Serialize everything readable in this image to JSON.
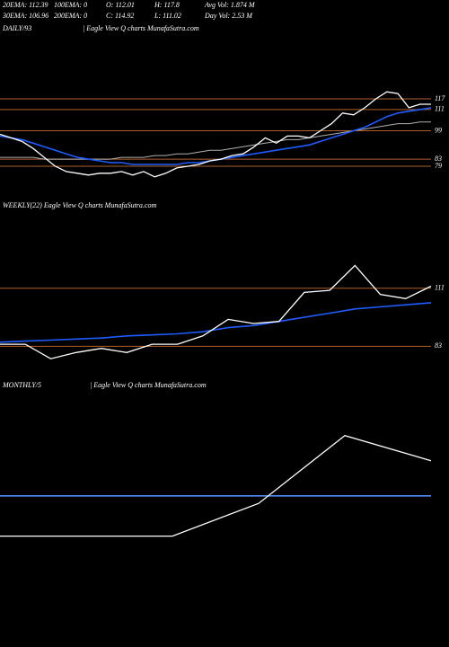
{
  "header": {
    "row1": [
      "20EMA: 112.39",
      "100EMA: 0",
      "O: 112.01",
      "H: 117.8",
      "Avg Vol: 1.874  M"
    ],
    "row2": [
      "30EMA: 106.96",
      "200EMA: 0",
      "C: 114.92",
      "L: 111.02",
      "Day Vol: 2.53  M"
    ]
  },
  "chart_data": [
    {
      "type": "line",
      "title": "DAILY/93",
      "subtitle": "| Eagle  View  Q charts MunafaSutra.com",
      "ylim": [
        46,
        150
      ],
      "yticks": [
        79,
        83,
        99,
        111,
        117
      ],
      "tick_line_color": "#b0602a",
      "series": [
        {
          "color": "#b0b0b0",
          "values": [
            84,
            84,
            84,
            84,
            83,
            83,
            83,
            83,
            83,
            83,
            83,
            84,
            84,
            84,
            85,
            85,
            86,
            86,
            87,
            88,
            88,
            89,
            90,
            91,
            92,
            93,
            94,
            94,
            95,
            96,
            97,
            98,
            99,
            100,
            101,
            102,
            103,
            103,
            104,
            104
          ]
        },
        {
          "color": "#1e5cff",
          "values": [
            96,
            95,
            94,
            92,
            90,
            88,
            86,
            84,
            83,
            82,
            81,
            81,
            80,
            80,
            80,
            80,
            80,
            81,
            81,
            82,
            83,
            84,
            85,
            86,
            87,
            88,
            89,
            90,
            91,
            93,
            95,
            97,
            99,
            101,
            104,
            107,
            109,
            110,
            111,
            112
          ]
        },
        {
          "color": "#ffffff",
          "values": [
            97,
            95,
            93,
            89,
            84,
            79,
            76,
            75,
            74,
            75,
            75,
            76,
            74,
            76,
            73,
            75,
            78,
            79,
            80,
            82,
            83,
            85,
            86,
            90,
            95,
            92,
            96,
            96,
            95,
            99,
            103,
            109,
            108,
            112,
            117,
            121,
            120,
            112,
            114,
            114
          ]
        }
      ]
    },
    {
      "type": "line",
      "title": "WEEKLY(22) Eagle  View  Q charts MunafaSutra.com",
      "ylim": [
        68,
        146
      ],
      "yticks": [
        83,
        111
      ],
      "tick_line_color": "#b0602a",
      "series": [
        {
          "color": "#1e5cff",
          "values": [
            85,
            85.5,
            86,
            86.5,
            87,
            88,
            88.5,
            89,
            90,
            92,
            93,
            95,
            97,
            99,
            101,
            102,
            103,
            104
          ]
        },
        {
          "color": "#ffffff",
          "values": [
            84,
            84,
            77,
            80,
            82,
            80,
            84,
            84,
            88,
            96,
            94,
            95,
            109,
            110,
            122,
            108,
            106,
            112
          ]
        }
      ]
    },
    {
      "type": "line",
      "title": "MONTHLY/5",
      "subtitle": "| Eagle  View  Q charts MunafaSutra.com",
      "ylim": [
        48,
        141
      ],
      "yticks": [],
      "series": [
        {
          "color": "#4f8cff",
          "values": [
            101,
            101,
            101,
            101,
            101,
            101
          ]
        },
        {
          "color": "#ffffff",
          "values": [
            85,
            85,
            85,
            98,
            125,
            115
          ]
        }
      ]
    }
  ]
}
